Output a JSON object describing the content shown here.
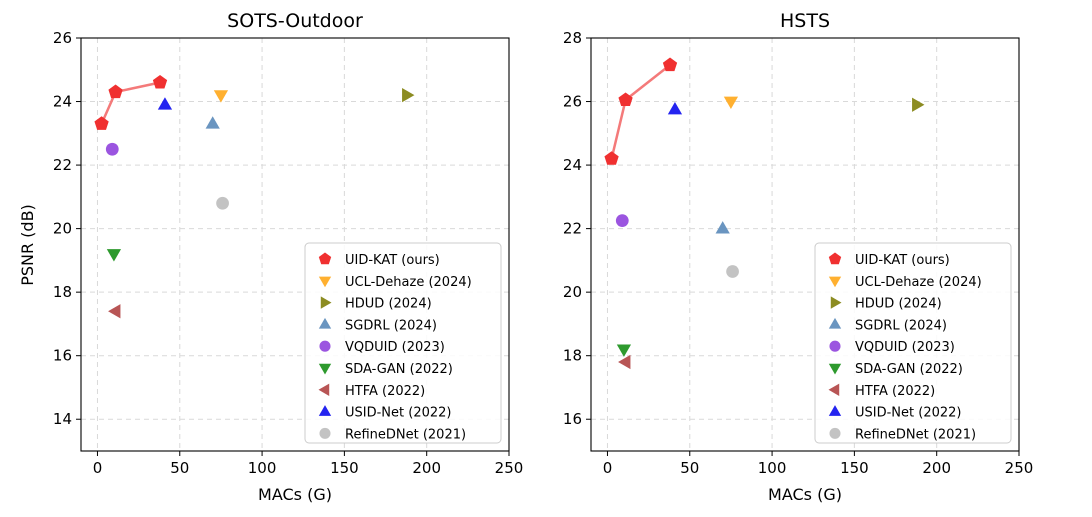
{
  "figure": {
    "ylabel": "PSNR (dB)"
  },
  "legend_entries": [
    {
      "name": "UID-KAT (ours)",
      "color": "#f03030",
      "marker": "pentagon"
    },
    {
      "name": "UCL-Dehaze (2024)",
      "color": "#ffb030",
      "marker": "triangle-down"
    },
    {
      "name": "HDUD (2024)",
      "color": "#8c8c22",
      "marker": "triangle-right"
    },
    {
      "name": "SGDRL (2024)",
      "color": "#6a95c0",
      "marker": "triangle-up"
    },
    {
      "name": "VQDUID (2023)",
      "color": "#9b55e0",
      "marker": "circle"
    },
    {
      "name": "SDA-GAN (2022)",
      "color": "#2e9a2e",
      "marker": "triangle-down"
    },
    {
      "name": "HTFA (2022)",
      "color": "#b85555",
      "marker": "triangle-left"
    },
    {
      "name": "USID-Net (2022)",
      "color": "#2424f0",
      "marker": "triangle-up"
    },
    {
      "name": "RefineDNet (2021)",
      "color": "#c3c3c3",
      "marker": "circle"
    }
  ],
  "chart_data": [
    {
      "type": "scatter",
      "title": "SOTS-Outdoor",
      "xlabel": "MACs (G)",
      "ylabel": "PSNR (dB)",
      "xlim": [
        -10,
        250
      ],
      "ylim": [
        13,
        26
      ],
      "xticks": [
        0,
        50,
        100,
        150,
        200,
        250
      ],
      "yticks": [
        14,
        16,
        18,
        20,
        22,
        24,
        26
      ],
      "grid": true,
      "legend_position": "lower-right",
      "series": [
        {
          "name": "UID-KAT (ours)",
          "connected": true,
          "points": [
            [
              2.5,
              23.3
            ],
            [
              11,
              24.3
            ],
            [
              38,
              24.6
            ]
          ]
        },
        {
          "name": "UCL-Dehaze (2024)",
          "points": [
            [
              75,
              24.2
            ]
          ]
        },
        {
          "name": "HDUD (2024)",
          "points": [
            [
              188,
              24.2
            ]
          ]
        },
        {
          "name": "SGDRL (2024)",
          "points": [
            [
              70,
              23.3
            ]
          ]
        },
        {
          "name": "VQDUID (2023)",
          "points": [
            [
              9,
              22.5
            ]
          ]
        },
        {
          "name": "SDA-GAN (2022)",
          "points": [
            [
              10,
              19.2
            ]
          ]
        },
        {
          "name": "HTFA (2022)",
          "points": [
            [
              11,
              17.4
            ]
          ]
        },
        {
          "name": "USID-Net (2022)",
          "points": [
            [
              41,
              23.9
            ]
          ]
        },
        {
          "name": "RefineDNet (2021)",
          "points": [
            [
              76,
              20.8
            ]
          ]
        }
      ]
    },
    {
      "type": "scatter",
      "title": "HSTS",
      "xlabel": "MACs (G)",
      "ylabel": "",
      "xlim": [
        -10,
        250
      ],
      "ylim": [
        15,
        28
      ],
      "xticks": [
        0,
        50,
        100,
        150,
        200,
        250
      ],
      "yticks": [
        16,
        18,
        20,
        22,
        24,
        26,
        28
      ],
      "grid": true,
      "legend_position": "lower-right",
      "series": [
        {
          "name": "UID-KAT (ours)",
          "connected": true,
          "points": [
            [
              2.5,
              24.2
            ],
            [
              11,
              26.05
            ],
            [
              38,
              27.15
            ]
          ]
        },
        {
          "name": "UCL-Dehaze (2024)",
          "points": [
            [
              75,
              26.0
            ]
          ]
        },
        {
          "name": "HDUD (2024)",
          "points": [
            [
              188,
              25.9
            ]
          ]
        },
        {
          "name": "SGDRL (2024)",
          "points": [
            [
              70,
              22.0
            ]
          ]
        },
        {
          "name": "VQDUID (2023)",
          "points": [
            [
              9,
              22.25
            ]
          ]
        },
        {
          "name": "SDA-GAN (2022)",
          "points": [
            [
              10,
              18.2
            ]
          ]
        },
        {
          "name": "HTFA (2022)",
          "points": [
            [
              11,
              17.8
            ]
          ]
        },
        {
          "name": "USID-Net (2022)",
          "points": [
            [
              41,
              25.75
            ]
          ]
        },
        {
          "name": "RefineDNet (2021)",
          "points": [
            [
              76,
              20.65
            ]
          ]
        }
      ]
    }
  ]
}
